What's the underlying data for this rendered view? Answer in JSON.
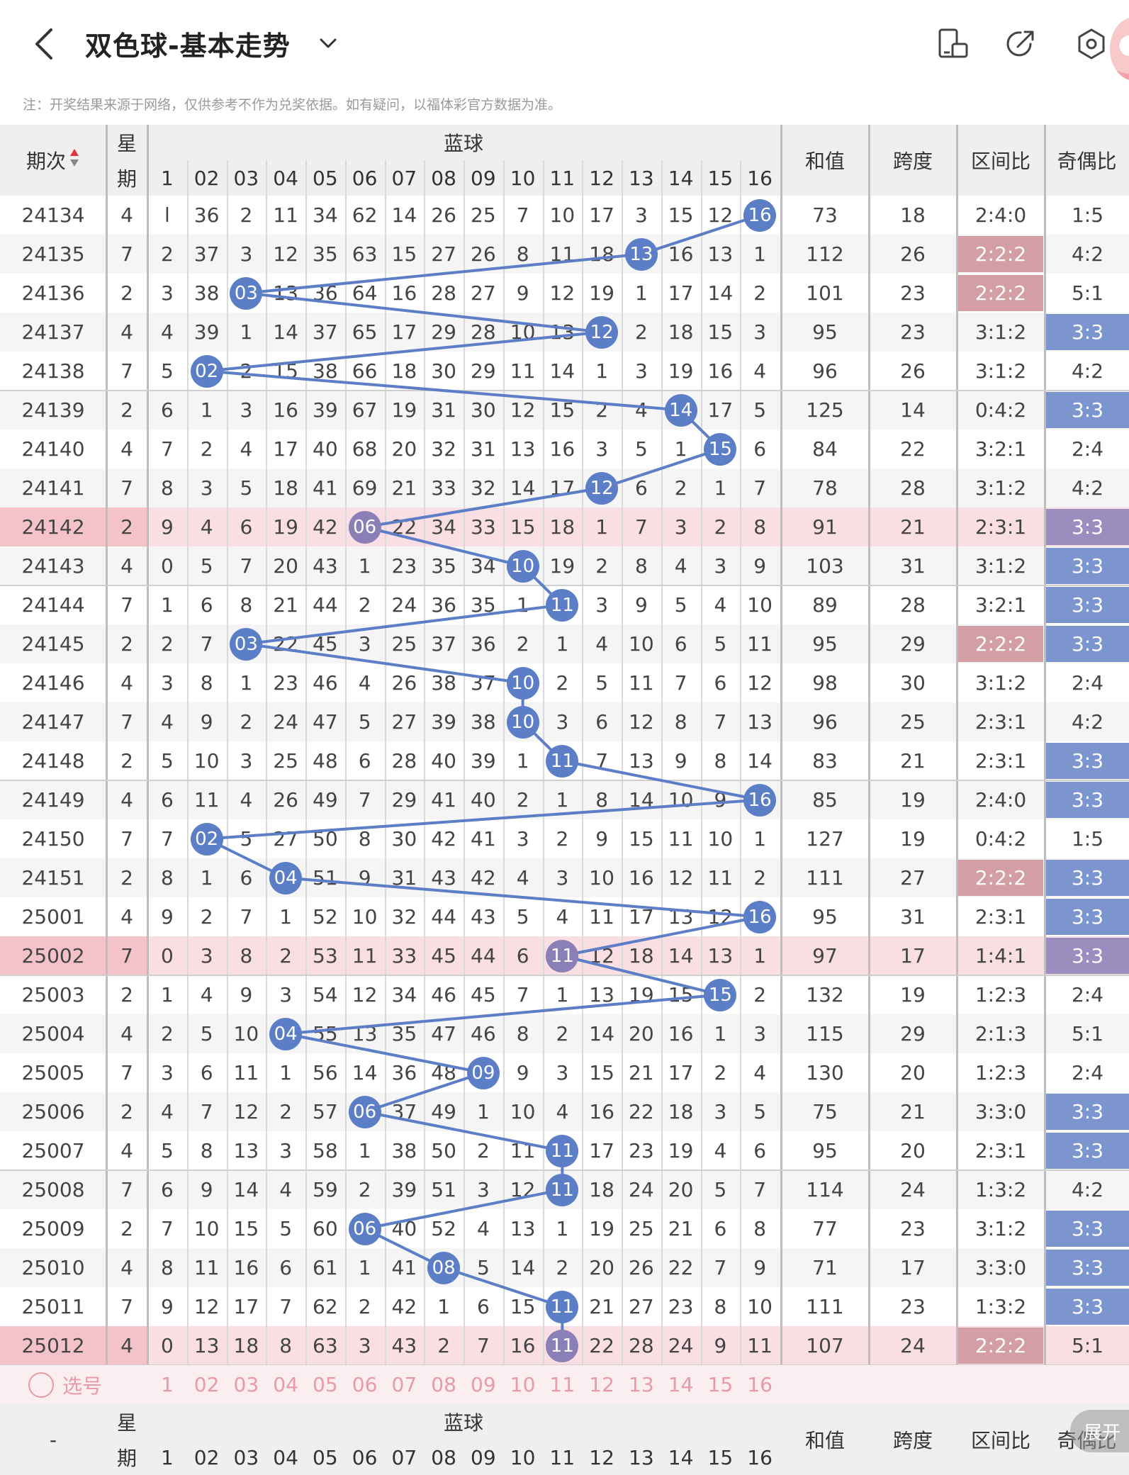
{
  "header": {
    "title": "双色球-基本走势",
    "back_icon": "chevron-left-icon",
    "dropdown_icon": "chevron-down-icon",
    "icons": [
      "device-icon",
      "share-icon",
      "settings-icon"
    ]
  },
  "note": "注：开奖结果来源于网络，仅供参考不作为兑奖依据。如有疑问，以福体彩官方数据为准。",
  "table": {
    "col_period": "期次",
    "col_week_top": "星",
    "col_week_bottom": "期",
    "col_blue": "蓝球",
    "blue_numbers": [
      "1",
      "02",
      "03",
      "04",
      "05",
      "06",
      "07",
      "08",
      "09",
      "10",
      "11",
      "12",
      "13",
      "14",
      "15",
      "16"
    ],
    "col_sum": "和值",
    "col_span": "跨度",
    "col_zone": "区间比",
    "col_parity": "奇偶比",
    "footer_select": "选号",
    "footer_period": "-",
    "expand_label": "展开",
    "rows": [
      {
        "period": "24134",
        "week": "4",
        "blue_cells": [
          "l",
          "36",
          "2",
          "11",
          "34",
          "62",
          "14",
          "26",
          "25",
          "7",
          "10",
          "17",
          "3",
          "15",
          "12",
          "16"
        ],
        "hit": 16,
        "sum": "73",
        "span": "18",
        "zone": "2:4:0",
        "parity": "1:5"
      },
      {
        "period": "24135",
        "week": "7",
        "blue_cells": [
          "2",
          "37",
          "3",
          "12",
          "35",
          "63",
          "15",
          "27",
          "26",
          "8",
          "11",
          "18",
          "13",
          "16",
          "13",
          "1"
        ],
        "hit": 13,
        "sum": "112",
        "span": "26",
        "zone": "2:2:2",
        "parity": "4:2"
      },
      {
        "period": "24136",
        "week": "2",
        "blue_cells": [
          "3",
          "38",
          "03",
          "13",
          "36",
          "64",
          "16",
          "28",
          "27",
          "9",
          "12",
          "19",
          "1",
          "17",
          "14",
          "2"
        ],
        "hit": 3,
        "sum": "101",
        "span": "23",
        "zone": "2:2:2",
        "parity": "5:1"
      },
      {
        "period": "24137",
        "week": "4",
        "blue_cells": [
          "4",
          "39",
          "1",
          "14",
          "37",
          "65",
          "17",
          "29",
          "28",
          "10",
          "13",
          "12",
          "2",
          "18",
          "15",
          "3"
        ],
        "hit": 12,
        "sum": "95",
        "span": "23",
        "zone": "3:1:2",
        "parity": "3:3"
      },
      {
        "period": "24138",
        "week": "7",
        "blue_cells": [
          "5",
          "02",
          "2",
          "15",
          "38",
          "66",
          "18",
          "30",
          "29",
          "11",
          "14",
          "1",
          "3",
          "19",
          "16",
          "4"
        ],
        "hit": 2,
        "sum": "96",
        "span": "26",
        "zone": "3:1:2",
        "parity": "4:2"
      },
      {
        "period": "24139",
        "week": "2",
        "blue_cells": [
          "6",
          "1",
          "3",
          "16",
          "39",
          "67",
          "19",
          "31",
          "30",
          "12",
          "15",
          "2",
          "4",
          "14",
          "17",
          "5"
        ],
        "hit": 14,
        "sum": "125",
        "span": "14",
        "zone": "0:4:2",
        "parity": "3:3"
      },
      {
        "period": "24140",
        "week": "4",
        "blue_cells": [
          "7",
          "2",
          "4",
          "17",
          "40",
          "68",
          "20",
          "32",
          "31",
          "13",
          "16",
          "3",
          "5",
          "1",
          "15",
          "6"
        ],
        "hit": 15,
        "sum": "84",
        "span": "22",
        "zone": "3:2:1",
        "parity": "2:4"
      },
      {
        "period": "24141",
        "week": "7",
        "blue_cells": [
          "8",
          "3",
          "5",
          "18",
          "41",
          "69",
          "21",
          "33",
          "32",
          "14",
          "17",
          "12",
          "6",
          "2",
          "1",
          "7"
        ],
        "hit": 12,
        "sum": "78",
        "span": "28",
        "zone": "3:1:2",
        "parity": "4:2"
      },
      {
        "period": "24142",
        "week": "2",
        "blue_cells": [
          "9",
          "4",
          "6",
          "19",
          "42",
          "06",
          "22",
          "34",
          "33",
          "15",
          "18",
          "1",
          "7",
          "3",
          "2",
          "8"
        ],
        "hit": 6,
        "sum": "91",
        "span": "21",
        "zone": "2:3:1",
        "parity": "3:3"
      },
      {
        "period": "24143",
        "week": "4",
        "blue_cells": [
          "0",
          "5",
          "7",
          "20",
          "43",
          "1",
          "23",
          "35",
          "34",
          "10",
          "19",
          "2",
          "8",
          "4",
          "3",
          "9"
        ],
        "hit": 10,
        "sum": "103",
        "span": "31",
        "zone": "3:1:2",
        "parity": "3:3"
      },
      {
        "period": "24144",
        "week": "7",
        "blue_cells": [
          "1",
          "6",
          "8",
          "21",
          "44",
          "2",
          "24",
          "36",
          "35",
          "1",
          "11",
          "3",
          "9",
          "5",
          "4",
          "10"
        ],
        "hit": 11,
        "sum": "89",
        "span": "28",
        "zone": "3:2:1",
        "parity": "3:3"
      },
      {
        "period": "24145",
        "week": "2",
        "blue_cells": [
          "2",
          "7",
          "03",
          "22",
          "45",
          "3",
          "25",
          "37",
          "36",
          "2",
          "1",
          "4",
          "10",
          "6",
          "5",
          "11"
        ],
        "hit": 3,
        "sum": "95",
        "span": "29",
        "zone": "2:2:2",
        "parity": "3:3"
      },
      {
        "period": "24146",
        "week": "4",
        "blue_cells": [
          "3",
          "8",
          "1",
          "23",
          "46",
          "4",
          "26",
          "38",
          "37",
          "10",
          "2",
          "5",
          "11",
          "7",
          "6",
          "12"
        ],
        "hit": 10,
        "sum": "98",
        "span": "30",
        "zone": "3:1:2",
        "parity": "2:4"
      },
      {
        "period": "24147",
        "week": "7",
        "blue_cells": [
          "4",
          "9",
          "2",
          "24",
          "47",
          "5",
          "27",
          "39",
          "38",
          "10",
          "3",
          "6",
          "12",
          "8",
          "7",
          "13"
        ],
        "hit": 10,
        "sum": "96",
        "span": "25",
        "zone": "2:3:1",
        "parity": "4:2"
      },
      {
        "period": "24148",
        "week": "2",
        "blue_cells": [
          "5",
          "10",
          "3",
          "25",
          "48",
          "6",
          "28",
          "40",
          "39",
          "1",
          "11",
          "7",
          "13",
          "9",
          "8",
          "14"
        ],
        "hit": 11,
        "sum": "83",
        "span": "21",
        "zone": "2:3:1",
        "parity": "3:3"
      },
      {
        "period": "24149",
        "week": "4",
        "blue_cells": [
          "6",
          "11",
          "4",
          "26",
          "49",
          "7",
          "29",
          "41",
          "40",
          "2",
          "1",
          "8",
          "14",
          "10",
          "9",
          "16"
        ],
        "hit": 16,
        "sum": "85",
        "span": "19",
        "zone": "2:4:0",
        "parity": "3:3"
      },
      {
        "period": "24150",
        "week": "7",
        "blue_cells": [
          "7",
          "02",
          "5",
          "27",
          "50",
          "8",
          "30",
          "42",
          "41",
          "3",
          "2",
          "9",
          "15",
          "11",
          "10",
          "1"
        ],
        "hit": 2,
        "sum": "127",
        "span": "19",
        "zone": "0:4:2",
        "parity": "1:5"
      },
      {
        "period": "24151",
        "week": "2",
        "blue_cells": [
          "8",
          "1",
          "6",
          "04",
          "51",
          "9",
          "31",
          "43",
          "42",
          "4",
          "3",
          "10",
          "16",
          "12",
          "11",
          "2"
        ],
        "hit": 4,
        "sum": "111",
        "span": "27",
        "zone": "2:2:2",
        "parity": "3:3"
      },
      {
        "period": "25001",
        "week": "4",
        "blue_cells": [
          "9",
          "2",
          "7",
          "1",
          "52",
          "10",
          "32",
          "44",
          "43",
          "5",
          "4",
          "11",
          "17",
          "13",
          "12",
          "16"
        ],
        "hit": 16,
        "sum": "95",
        "span": "31",
        "zone": "2:3:1",
        "parity": "3:3"
      },
      {
        "period": "25002",
        "week": "7",
        "blue_cells": [
          "0",
          "3",
          "8",
          "2",
          "53",
          "11",
          "33",
          "45",
          "44",
          "6",
          "11",
          "12",
          "18",
          "14",
          "13",
          "1"
        ],
        "hit": 11,
        "sum": "97",
        "span": "17",
        "zone": "1:4:1",
        "parity": "3:3"
      },
      {
        "period": "25003",
        "week": "2",
        "blue_cells": [
          "1",
          "4",
          "9",
          "3",
          "54",
          "12",
          "34",
          "46",
          "45",
          "7",
          "1",
          "13",
          "19",
          "15",
          "15",
          "2"
        ],
        "hit": 15,
        "sum": "132",
        "span": "19",
        "zone": "1:2:3",
        "parity": "2:4"
      },
      {
        "period": "25004",
        "week": "4",
        "blue_cells": [
          "2",
          "5",
          "10",
          "04",
          "55",
          "13",
          "35",
          "47",
          "46",
          "8",
          "2",
          "14",
          "20",
          "16",
          "1",
          "3"
        ],
        "hit": 4,
        "sum": "115",
        "span": "29",
        "zone": "2:1:3",
        "parity": "5:1"
      },
      {
        "period": "25005",
        "week": "7",
        "blue_cells": [
          "3",
          "6",
          "11",
          "1",
          "56",
          "14",
          "36",
          "48",
          "09",
          "9",
          "3",
          "15",
          "21",
          "17",
          "2",
          "4"
        ],
        "hit": 9,
        "sum": "130",
        "span": "20",
        "zone": "1:2:3",
        "parity": "2:4"
      },
      {
        "period": "25006",
        "week": "2",
        "blue_cells": [
          "4",
          "7",
          "12",
          "2",
          "57",
          "06",
          "37",
          "49",
          "1",
          "10",
          "4",
          "16",
          "22",
          "18",
          "3",
          "5"
        ],
        "hit": 6,
        "sum": "75",
        "span": "21",
        "zone": "3:3:0",
        "parity": "3:3"
      },
      {
        "period": "25007",
        "week": "4",
        "blue_cells": [
          "5",
          "8",
          "13",
          "3",
          "58",
          "1",
          "38",
          "50",
          "2",
          "11",
          "11",
          "17",
          "23",
          "19",
          "4",
          "6"
        ],
        "hit": 11,
        "sum": "95",
        "span": "20",
        "zone": "2:3:1",
        "parity": "3:3"
      },
      {
        "period": "25008",
        "week": "7",
        "blue_cells": [
          "6",
          "9",
          "14",
          "4",
          "59",
          "2",
          "39",
          "51",
          "3",
          "12",
          "11",
          "18",
          "24",
          "20",
          "5",
          "7"
        ],
        "hit": 11,
        "sum": "114",
        "span": "24",
        "zone": "1:3:2",
        "parity": "4:2"
      },
      {
        "period": "25009",
        "week": "2",
        "blue_cells": [
          "7",
          "10",
          "15",
          "5",
          "60",
          "06",
          "40",
          "52",
          "4",
          "13",
          "1",
          "19",
          "25",
          "21",
          "6",
          "8"
        ],
        "hit": 6,
        "sum": "77",
        "span": "23",
        "zone": "3:1:2",
        "parity": "3:3"
      },
      {
        "period": "25010",
        "week": "4",
        "blue_cells": [
          "8",
          "11",
          "16",
          "6",
          "61",
          "1",
          "41",
          "08",
          "5",
          "14",
          "2",
          "20",
          "26",
          "22",
          "7",
          "9"
        ],
        "hit": 8,
        "sum": "71",
        "span": "17",
        "zone": "3:3:0",
        "parity": "3:3"
      },
      {
        "period": "25011",
        "week": "7",
        "blue_cells": [
          "9",
          "12",
          "17",
          "7",
          "62",
          "2",
          "42",
          "1",
          "6",
          "15",
          "11",
          "21",
          "27",
          "23",
          "8",
          "10"
        ],
        "hit": 11,
        "sum": "111",
        "span": "23",
        "zone": "1:3:2",
        "parity": "3:3"
      },
      {
        "period": "25012",
        "week": "4",
        "blue_cells": [
          "0",
          "13",
          "18",
          "8",
          "63",
          "3",
          "43",
          "2",
          "7",
          "16",
          "11",
          "22",
          "28",
          "24",
          "9",
          "11"
        ],
        "hit": 11,
        "sum": "107",
        "span": "24",
        "zone": "2:2:2",
        "parity": "5:1"
      }
    ],
    "highlight_rows": [
      "24142",
      "25002",
      "25012"
    ],
    "zone_highlight": [
      "24135",
      "24136",
      "24145",
      "24151",
      "25012"
    ],
    "parity_highlight": [
      "24137",
      "24139",
      "24142",
      "24143",
      "24144",
      "24145",
      "24148",
      "24149",
      "24151",
      "25001",
      "25002",
      "25006",
      "25007",
      "25009",
      "25010",
      "25011"
    ]
  },
  "colors": {
    "ball": "#5b7ec6",
    "ball_on_pink": "#8a7fb6",
    "row_pink": "#f9dfe3",
    "zone_pink": "#d49ea5",
    "parity_blue": "#7c95cf",
    "parity_purple": "#9b8ebe",
    "line": "#5b7ec6"
  }
}
